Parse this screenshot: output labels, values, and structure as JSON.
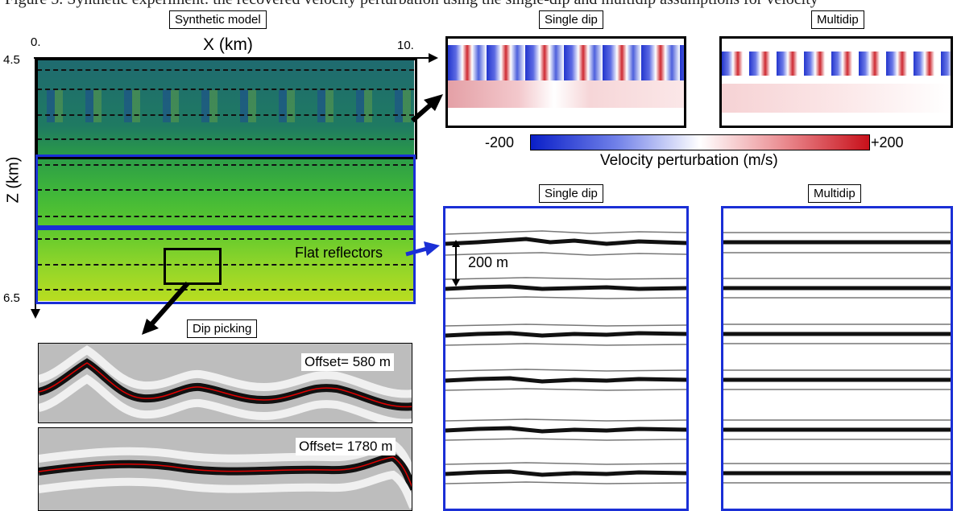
{
  "top_caption": "Figure 5. Synthetic experiment: the recovered velocity perturbation using the single-dip and multidip assumptions for velocity",
  "synthetic": {
    "title": "Synthetic model",
    "x_axis_label": "X (km)",
    "x_tick_start": "0.",
    "x_tick_end": "10.",
    "z_axis_label": "Z (km)",
    "z_tick_top": "4.5",
    "z_tick_bottom": "6.5",
    "flat_reflectors_label": "Flat reflectors"
  },
  "velocity_panels": {
    "left_title": "Single dip",
    "right_title": "Multidip",
    "colorbar_min": "-200",
    "colorbar_max": "+200",
    "colorbar_label": "Velocity perturbation (m/s)",
    "colors": {
      "negative": "#0a1fc8",
      "zero": "#ffffff",
      "positive": "#c8101a"
    }
  },
  "image_panels": {
    "left_title": "Single dip",
    "right_title": "Multidip",
    "scale_label": "200 m"
  },
  "dip_picking": {
    "title": "Dip picking",
    "offset_top": "Offset= 580 m",
    "offset_bottom": "Offset= 1780 m",
    "pick_color": "#e00000"
  },
  "arrow_colors": {
    "black": "#000000",
    "blue": "#1a2fd6"
  }
}
